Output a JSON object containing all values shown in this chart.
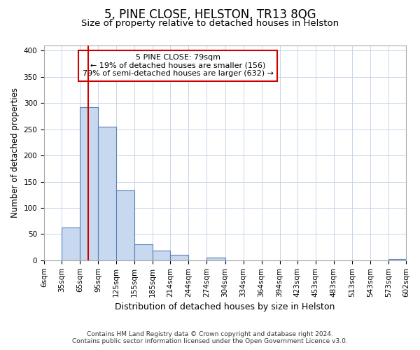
{
  "title": "5, PINE CLOSE, HELSTON, TR13 8QG",
  "subtitle": "Size of property relative to detached houses in Helston",
  "xlabel": "Distribution of detached houses by size in Helston",
  "ylabel": "Number of detached properties",
  "footer_line1": "Contains HM Land Registry data © Crown copyright and database right 2024.",
  "footer_line2": "Contains public sector information licensed under the Open Government Licence v3.0.",
  "bin_edges": [
    6,
    35,
    65,
    95,
    125,
    155,
    185,
    214,
    244,
    274,
    304,
    334,
    364,
    394,
    423,
    453,
    483,
    513,
    543,
    573,
    602
  ],
  "bar_heights": [
    0,
    62,
    293,
    255,
    133,
    30,
    18,
    11,
    0,
    5,
    0,
    0,
    0,
    0,
    0,
    0,
    0,
    0,
    0,
    2
  ],
  "bar_color": "#c8d8ee",
  "bar_edge_color": "#5580b8",
  "grid_color": "#c8d4e8",
  "vline_x": 79,
  "vline_color": "#cc0000",
  "annotation_text": "5 PINE CLOSE: 79sqm\n← 19% of detached houses are smaller (156)\n79% of semi-detached houses are larger (632) →",
  "annotation_box_color": "#cc0000",
  "ylim": [
    0,
    410
  ],
  "bg_color": "#ffffff",
  "plot_bg_color": "#ffffff",
  "tick_label_fontsize": 7.5,
  "ylabel_fontsize": 8.5,
  "xlabel_fontsize": 9,
  "title_fontsize": 12,
  "subtitle_fontsize": 9.5
}
